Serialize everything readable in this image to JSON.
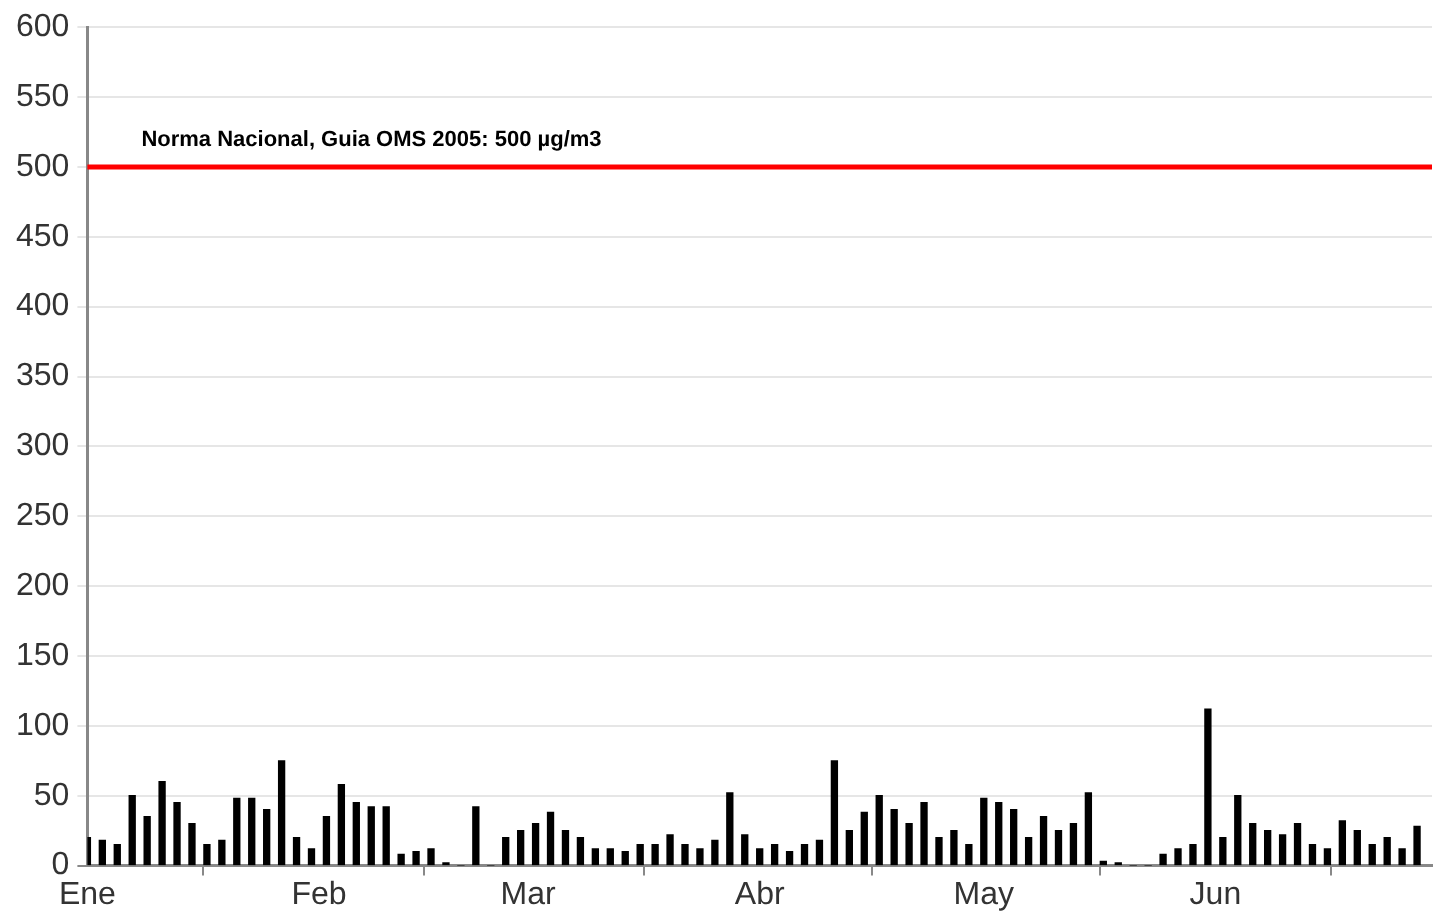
{
  "chart_data": {
    "type": "bar",
    "x": [
      "--01-01",
      "--01-03",
      "--01-05",
      "--01-07",
      "--01-09",
      "--01-11",
      "--01-13",
      "--01-15",
      "--01-17",
      "--01-19",
      "--01-21",
      "--01-23",
      "--01-25",
      "--01-27",
      "--01-29",
      "--01-31",
      "--02-02",
      "--02-04",
      "--02-06",
      "--02-08",
      "--02-10",
      "--02-12",
      "--02-14",
      "--02-16",
      "--02-18",
      "--02-20",
      "--02-22",
      "--02-24",
      "--02-26",
      "--02-28",
      "--03-02",
      "--03-04",
      "--03-06",
      "--03-08",
      "--03-10",
      "--03-12",
      "--03-14",
      "--03-16",
      "--03-18",
      "--03-20",
      "--03-22",
      "--03-24",
      "--03-26",
      "--03-28",
      "--03-30",
      "--04-01",
      "--04-03",
      "--04-05",
      "--04-07",
      "--04-09",
      "--04-11",
      "--04-13",
      "--04-15",
      "--04-17",
      "--04-19",
      "--04-21",
      "--04-23",
      "--04-25",
      "--04-27",
      "--04-29",
      "--05-01",
      "--05-03",
      "--05-05",
      "--05-07",
      "--05-09",
      "--05-11",
      "--05-13",
      "--05-15",
      "--05-17",
      "--05-19",
      "--05-21",
      "--05-23",
      "--05-25",
      "--05-27",
      "--05-29",
      "--05-31",
      "--06-02",
      "--06-04",
      "--06-06",
      "--06-08",
      "--06-10",
      "--06-12",
      "--06-14",
      "--06-16",
      "--06-18",
      "--06-20",
      "--06-22",
      "--06-24",
      "--06-26",
      "--06-28"
    ],
    "values": [
      20,
      18,
      15,
      50,
      35,
      60,
      45,
      30,
      15,
      18,
      48,
      48,
      40,
      75,
      20,
      12,
      35,
      58,
      45,
      42,
      42,
      8,
      10,
      12,
      2,
      0,
      42,
      0,
      20,
      25,
      30,
      38,
      25,
      20,
      12,
      12,
      10,
      15,
      15,
      22,
      15,
      12,
      18,
      52,
      22,
      12,
      15,
      10,
      15,
      18,
      75,
      25,
      38,
      50,
      40,
      30,
      45,
      20,
      25,
      15,
      48,
      45,
      40,
      20,
      35,
      25,
      30,
      52,
      3,
      2,
      0,
      0,
      8,
      12,
      15,
      112,
      20,
      50,
      30,
      25,
      22,
      30,
      15,
      12,
      32,
      25,
      15,
      20,
      12,
      28
    ],
    "color": "#000000",
    "xlim": [
      "--01-01",
      "--06-30"
    ],
    "xticks": [
      {
        "value": "--01-01",
        "label": "Ene"
      },
      {
        "value": "--02-01",
        "label": "Feb"
      },
      {
        "value": "--03-01",
        "label": "Mar"
      },
      {
        "value": "--04-01",
        "label": "Abr"
      },
      {
        "value": "--05-01",
        "label": "May"
      },
      {
        "value": "--06-01",
        "label": "Jun"
      }
    ],
    "ylim": [
      0,
      600
    ],
    "yticks": [
      0,
      50,
      100,
      150,
      200,
      250,
      300,
      350,
      400,
      450,
      500,
      550,
      600
    ],
    "grid": "y",
    "ref_lines": [
      {
        "axis": "y",
        "value": 500,
        "label": "Norma Nacional, Guia OMS 2005: 500 µg/m3",
        "color": "#ff0000"
      }
    ]
  }
}
